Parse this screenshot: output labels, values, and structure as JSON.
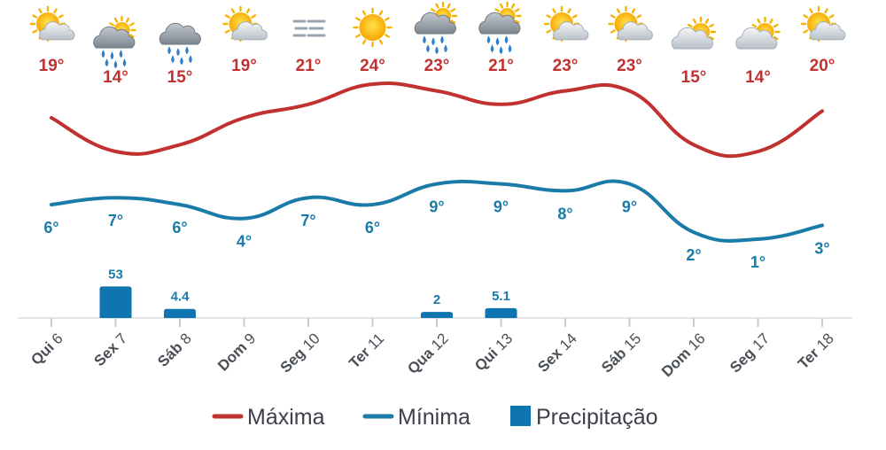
{
  "chart_data": {
    "type": "line",
    "categories": [
      {
        "day": "Qui",
        "date": "6"
      },
      {
        "day": "Sex",
        "date": "7"
      },
      {
        "day": "Sáb",
        "date": "8"
      },
      {
        "day": "Dom",
        "date": "9"
      },
      {
        "day": "Seg",
        "date": "10"
      },
      {
        "day": "Ter",
        "date": "11"
      },
      {
        "day": "Qua",
        "date": "12"
      },
      {
        "day": "Qui",
        "date": "13"
      },
      {
        "day": "Sex",
        "date": "14"
      },
      {
        "day": "Sáb",
        "date": "15"
      },
      {
        "day": "Dom",
        "date": "16"
      },
      {
        "day": "Seg",
        "date": "17"
      },
      {
        "day": "Ter",
        "date": "18"
      }
    ],
    "icons": [
      "sun-behind-cloud",
      "cloud-rain-sun",
      "cloud-rain",
      "sun-behind-cloud",
      "fog",
      "sun",
      "cloud-rain-sun",
      "cloud-rain-sun",
      "sun-behind-cloud",
      "sun-behind-cloud",
      "cloud-sun",
      "cloud-sun",
      "sun-behind-cloud"
    ],
    "series": [
      {
        "name": "Máxima",
        "color": "#c0312f",
        "values": [
          19,
          14,
          15,
          19,
          21,
          24,
          23,
          21,
          23,
          23,
          15,
          14,
          20
        ],
        "labels": [
          "19°",
          "14°",
          "15°",
          "19°",
          "21°",
          "24°",
          "23°",
          "21°",
          "23°",
          "23°",
          "15°",
          "14°",
          "20°"
        ]
      },
      {
        "name": "Mínima",
        "color": "#1a7aa8",
        "values": [
          6,
          7,
          6,
          4,
          7,
          6,
          9,
          9,
          8,
          9,
          2,
          1,
          3
        ],
        "labels": [
          "6°",
          "7°",
          "6°",
          "4°",
          "7°",
          "6°",
          "9°",
          "9°",
          "8°",
          "9°",
          "2°",
          "1°",
          "3°"
        ]
      },
      {
        "name": "Precipitação",
        "color": "#0f75b0",
        "type": "bar",
        "values": [
          null,
          53,
          4.4,
          null,
          null,
          null,
          2,
          5.1,
          null,
          null,
          null,
          null,
          null
        ],
        "labels": [
          "",
          "53",
          "4.4",
          "",
          "",
          "",
          "2",
          "5.1",
          "",
          "",
          "",
          "",
          ""
        ]
      }
    ],
    "legend": [
      "Máxima",
      "Mínima",
      "Precipitação"
    ],
    "legend_position": "bottom"
  }
}
